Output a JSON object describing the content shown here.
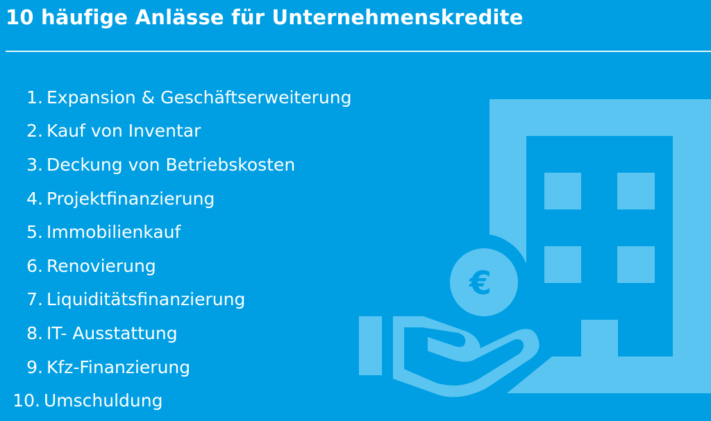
{
  "title": "10 häufige Anlässe für Unternehmenskredite",
  "items": [
    {
      "num": "1.",
      "label": "Expansion & Geschäftserweiterung"
    },
    {
      "num": "2.",
      "label": "Kauf von Inventar"
    },
    {
      "num": "3.",
      "label": "Deckung von Betriebskosten"
    },
    {
      "num": "4.",
      "label": "Projektfinanzierung"
    },
    {
      "num": "5.",
      "label": "Immobilienkauf"
    },
    {
      "num": "6.",
      "label": "Renovierung"
    },
    {
      "num": "7.",
      "label": "Liquiditätsfinanzierung"
    },
    {
      "num": "8.",
      "label": "IT- Ausstattung"
    },
    {
      "num": "9.",
      "label": "Kfz-Finanzierung"
    },
    {
      "num": "10.",
      "label": "Umschuldung"
    }
  ],
  "illustration": {
    "icon": "building-with-hand-and-euro-coin-icon",
    "coin_symbol": "€"
  },
  "colors": {
    "background": "#009fe3",
    "icon": "#5bc5f2",
    "text": "#ffffff"
  }
}
